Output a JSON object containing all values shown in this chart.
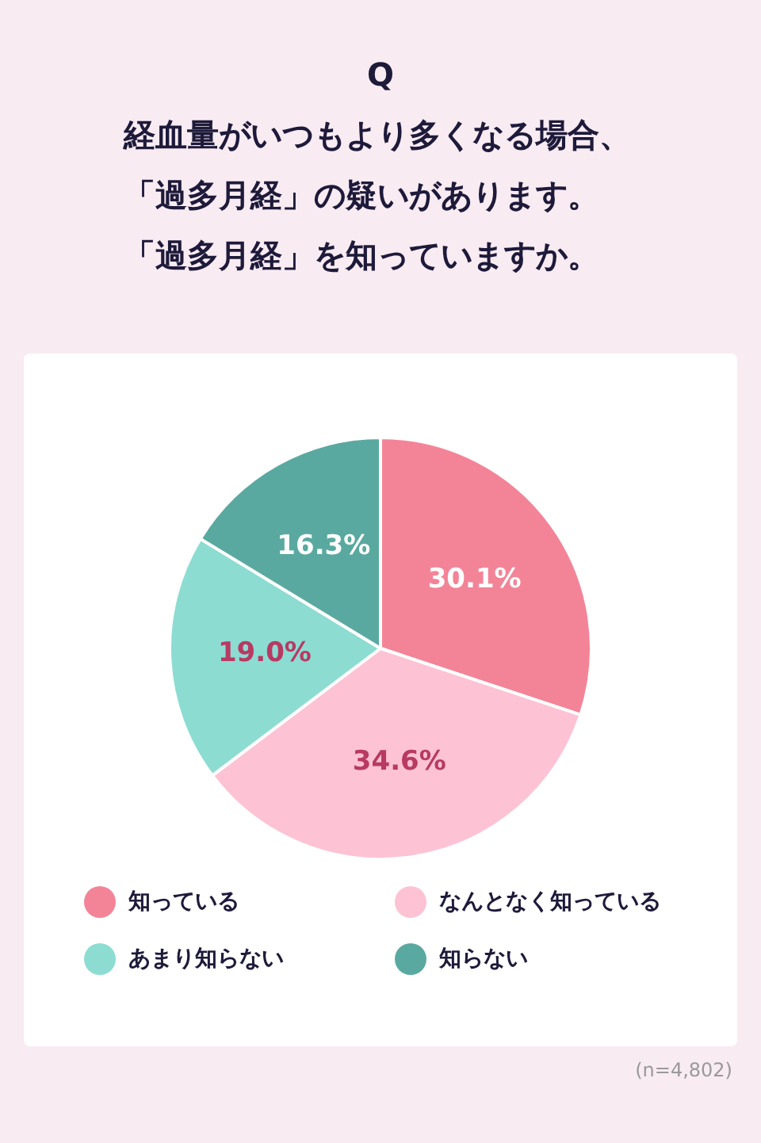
{
  "chart_data": {
    "type": "pie",
    "title": "Q",
    "subtitle": "経血量がいつもより多くなる場合、「過多月経」の疑いがあります。「過多月経」を知っていますか。",
    "categories": [
      "知っている",
      "なんとなく知っている",
      "あまり知らない",
      "知らない"
    ],
    "values": [
      30.1,
      34.6,
      19.0,
      16.3
    ],
    "value_labels": [
      "30.1%",
      "34.6%",
      "19.0%",
      "16.3%"
    ],
    "colors": [
      "#f38497",
      "#fdc3d5",
      "#8cdcd2",
      "#5aa9a0"
    ],
    "legend": "bottom",
    "annotations": [
      "(n=4,802)"
    ]
  }
}
